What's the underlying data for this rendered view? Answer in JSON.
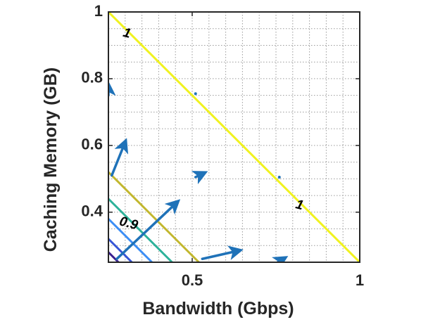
{
  "chart_data": {
    "type": "contour",
    "xlabel": "Bandwidth (Gbps)",
    "ylabel": "Caching Memory (GB)",
    "xlim": [
      0.25,
      1
    ],
    "ylim": [
      0.25,
      1
    ],
    "xticks": [
      0.5,
      1
    ],
    "xtick_labels": [
      "0.5",
      "1"
    ],
    "yticks": [
      0.4,
      0.6,
      0.8,
      1
    ],
    "ytick_labels": [
      "0.4",
      "0.6",
      "0.8",
      "1"
    ],
    "grid": true,
    "grid_style": "dotted",
    "minor_grid_step": 0.05,
    "contour_levels": [
      {
        "level": 1.0,
        "color": "#f0f21f",
        "points": [
          [
            0.25,
            1.0
          ],
          [
            1.0,
            0.25
          ]
        ],
        "label": "1"
      },
      {
        "level": 0.95,
        "color": "#c2b72e",
        "points": [
          [
            0.25,
            0.52
          ],
          [
            0.52,
            0.25
          ]
        ]
      },
      {
        "level": 0.9,
        "color": "#2db29a",
        "points": [
          [
            0.25,
            0.44
          ],
          [
            0.44,
            0.25
          ]
        ],
        "label": "0.9"
      },
      {
        "level": 0.85,
        "color": "#3c8ef5",
        "points": [
          [
            0.25,
            0.38
          ],
          [
            0.38,
            0.25
          ]
        ]
      },
      {
        "level": 0.8,
        "color": "#3655d6",
        "points": [
          [
            0.25,
            0.32
          ],
          [
            0.32,
            0.25
          ]
        ]
      },
      {
        "level": 0.75,
        "color": "#3a1f8e",
        "points": [
          [
            0.25,
            0.28
          ],
          [
            0.28,
            0.25
          ]
        ]
      }
    ],
    "contour_labels": [
      {
        "text": "1",
        "x": 0.305,
        "y": 0.935
      },
      {
        "text": "0.9",
        "x": 0.31,
        "y": 0.365
      },
      {
        "text": "1",
        "x": 0.82,
        "y": 0.42
      }
    ],
    "gradient_arrows": {
      "color": "#1f72b8",
      "vectors": [
        {
          "x": 0.26,
          "y": 0.51,
          "dx": 0.04,
          "dy": 0.1
        },
        {
          "x": 0.275,
          "y": 0.26,
          "dx": 0.18,
          "dy": 0.17
        },
        {
          "x": 0.53,
          "y": 0.26,
          "dx": 0.11,
          "dy": 0.025
        },
        {
          "x": 0.25,
          "y": 0.75,
          "dx": 0.0,
          "dy": 0.03
        },
        {
          "x": 0.51,
          "y": 0.505,
          "dx": 0.025,
          "dy": 0.012
        },
        {
          "x": 0.755,
          "y": 0.25,
          "dx": 0.02,
          "dy": 0.012
        },
        {
          "x": 0.51,
          "y": 0.755,
          "dx": 0.0,
          "dy": 0.0
        },
        {
          "x": 0.76,
          "y": 0.505,
          "dx": 0.0,
          "dy": 0.0
        }
      ]
    }
  }
}
